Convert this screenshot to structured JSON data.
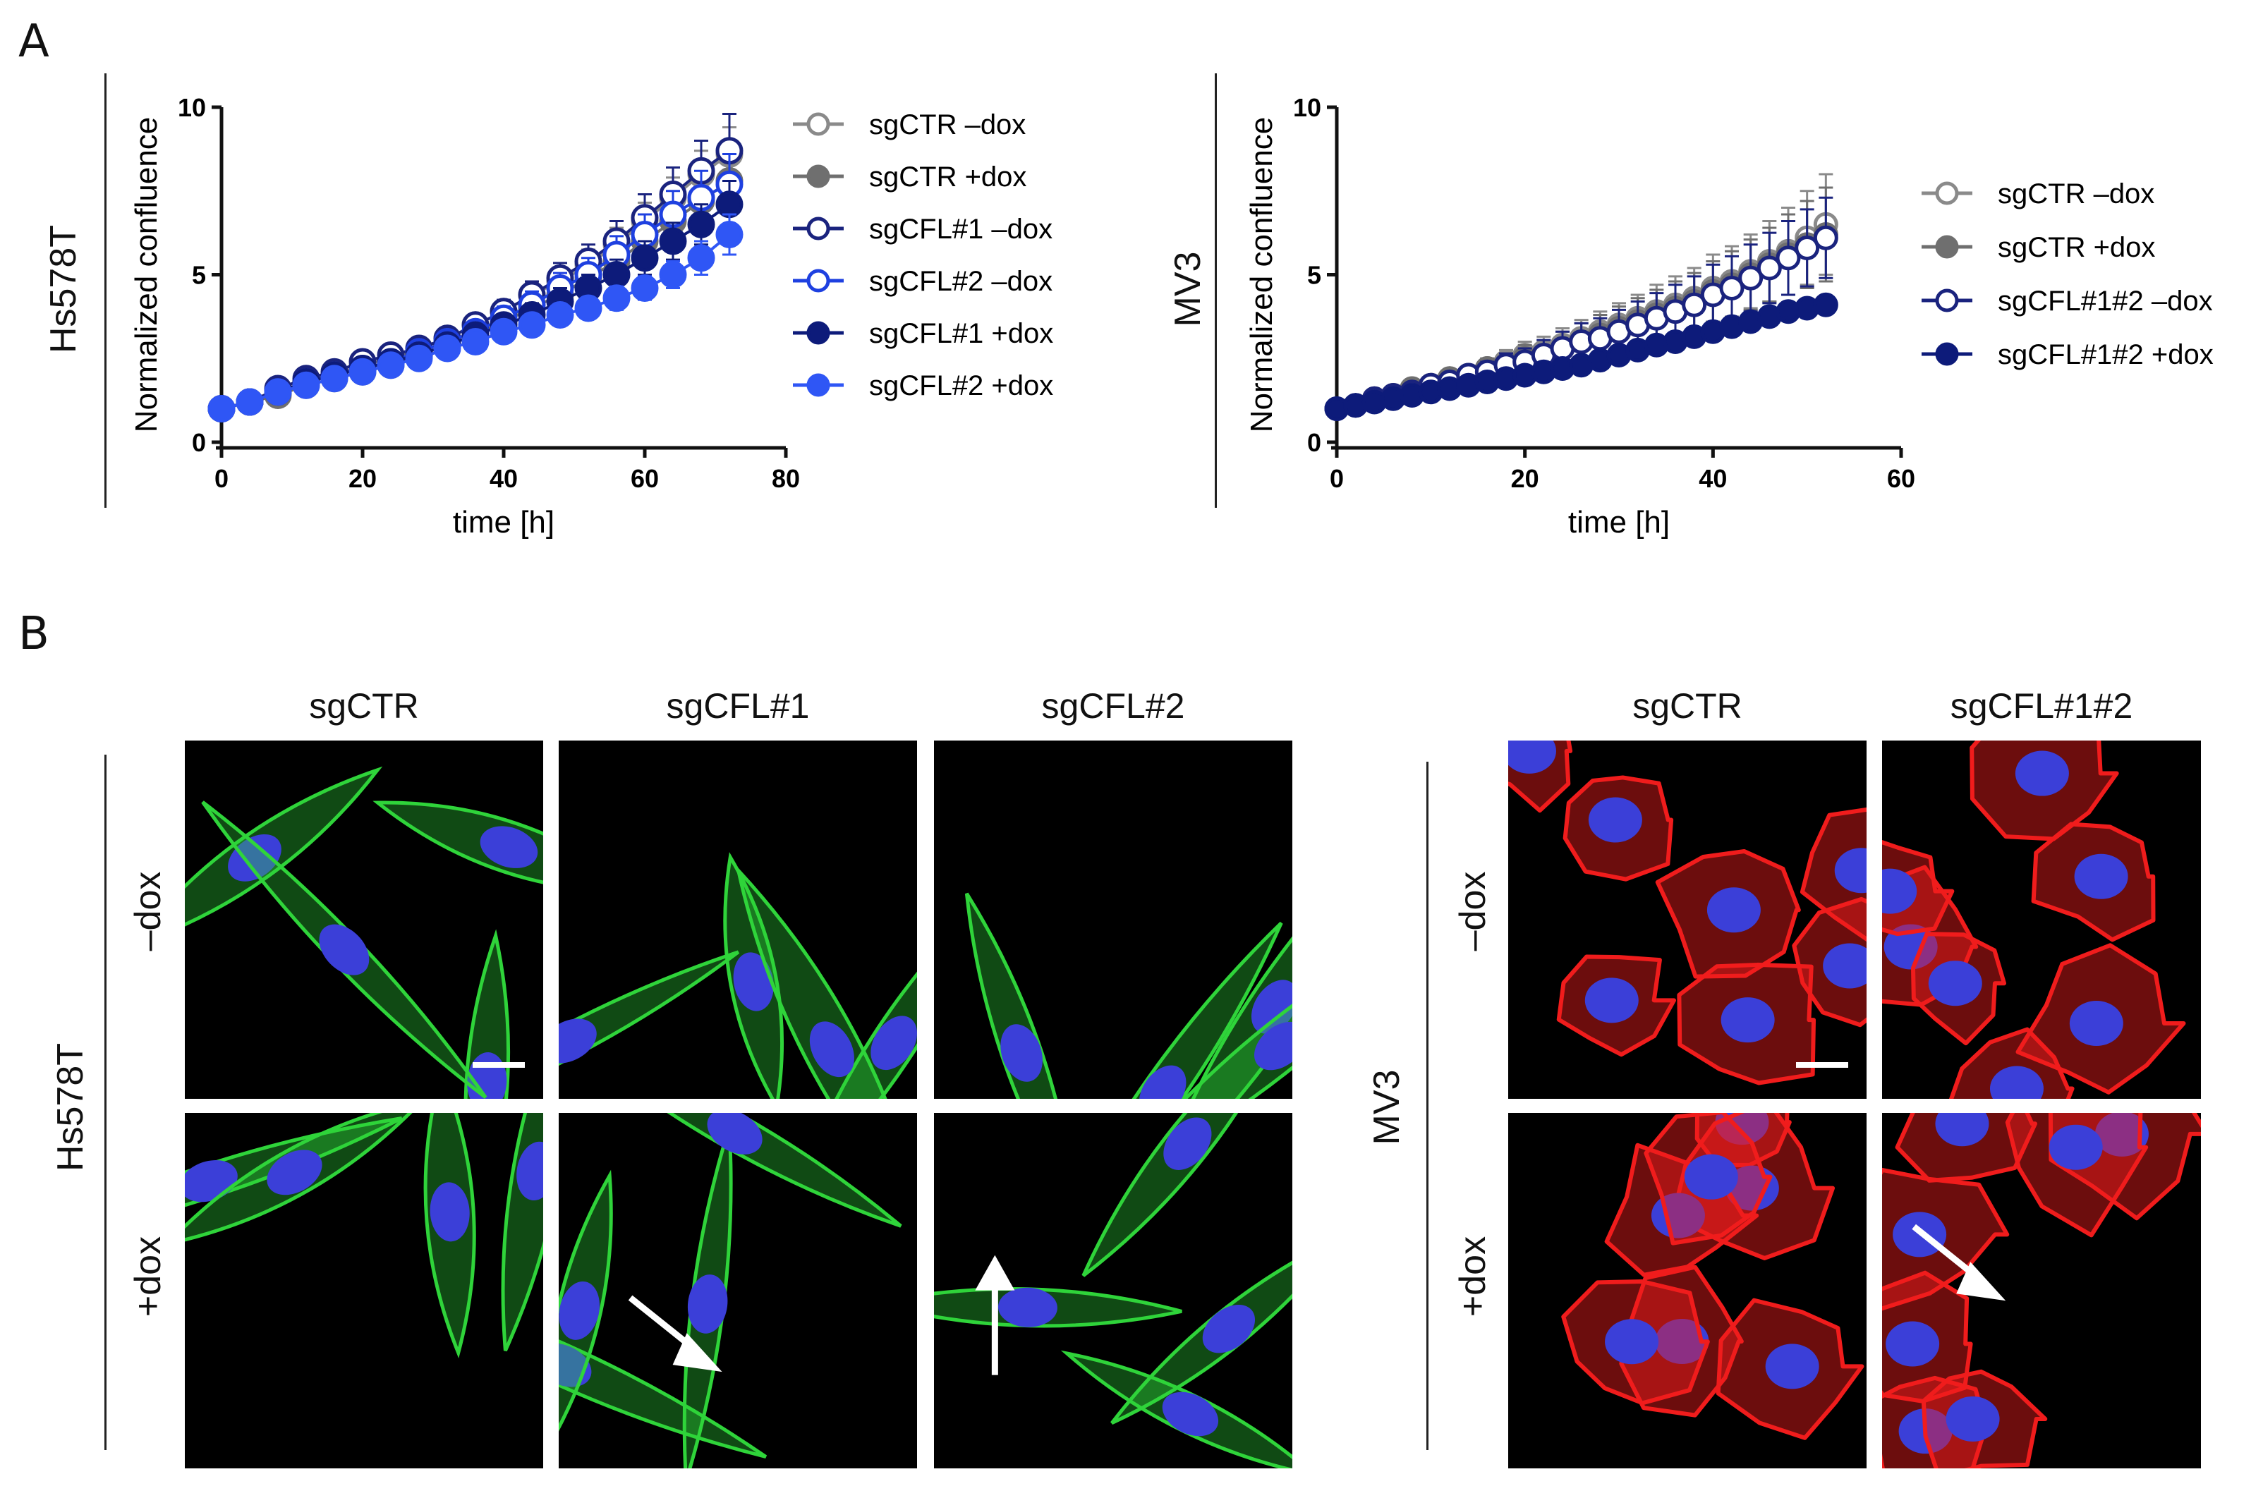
{
  "panelA": {
    "letter": "A",
    "charts": [
      {
        "row_label": "Hs578T",
        "chart_data": {
          "type": "line",
          "xlabel": "time [h]",
          "ylabel": "Normalized confluence",
          "xlim": [
            0,
            80
          ],
          "ylim": [
            0,
            10
          ],
          "xticks": [
            0,
            20,
            40,
            60,
            80
          ],
          "yticks": [
            0,
            5,
            10
          ],
          "legend_position": "right",
          "series": [
            {
              "name": "sgCTR –dox",
              "color": "#8a8a8a",
              "filled": false,
              "x": [
                0,
                4,
                8,
                12,
                16,
                20,
                24,
                28,
                32,
                36,
                40,
                44,
                48,
                52,
                56,
                60,
                64,
                68,
                72
              ],
              "y": [
                1.0,
                1.2,
                1.5,
                1.8,
                2.0,
                2.3,
                2.5,
                2.8,
                3.1,
                3.5,
                3.9,
                4.4,
                4.8,
                5.3,
                5.9,
                6.6,
                7.3,
                8.0,
                8.6
              ],
              "err": [
                0,
                0.05,
                0.1,
                0.1,
                0.15,
                0.15,
                0.2,
                0.2,
                0.25,
                0.3,
                0.3,
                0.35,
                0.4,
                0.45,
                0.5,
                0.55,
                0.6,
                0.7,
                0.8
              ]
            },
            {
              "name": "sgCTR +dox",
              "color": "#6f6f6f",
              "filled": true,
              "x": [
                0,
                4,
                8,
                12,
                16,
                20,
                24,
                28,
                32,
                36,
                40,
                44,
                48,
                52,
                56,
                60,
                64,
                68,
                72
              ],
              "y": [
                1.0,
                1.2,
                1.4,
                1.7,
                1.9,
                2.1,
                2.3,
                2.6,
                2.9,
                3.2,
                3.6,
                4.0,
                4.4,
                4.9,
                5.4,
                6.0,
                6.6,
                7.2,
                7.8
              ],
              "err": [
                0,
                0.05,
                0.1,
                0.1,
                0.15,
                0.15,
                0.2,
                0.2,
                0.25,
                0.3,
                0.3,
                0.35,
                0.4,
                0.45,
                0.5,
                0.55,
                0.6,
                0.7,
                0.8
              ]
            },
            {
              "name": "sgCFL#1 –dox",
              "color": "#1a237e",
              "filled": false,
              "x": [
                0,
                4,
                8,
                12,
                16,
                20,
                24,
                28,
                32,
                36,
                40,
                44,
                48,
                52,
                56,
                60,
                64,
                68,
                72
              ],
              "y": [
                1.0,
                1.2,
                1.6,
                1.9,
                2.1,
                2.4,
                2.6,
                2.8,
                3.1,
                3.5,
                3.9,
                4.4,
                4.9,
                5.4,
                6.0,
                6.7,
                7.4,
                8.1,
                8.7
              ],
              "err": [
                0,
                0.05,
                0.1,
                0.1,
                0.15,
                0.15,
                0.2,
                0.2,
                0.25,
                0.3,
                0.35,
                0.4,
                0.45,
                0.5,
                0.6,
                0.7,
                0.8,
                0.9,
                1.1
              ]
            },
            {
              "name": "sgCFL#2 –dox",
              "color": "#1e40e0",
              "filled": false,
              "x": [
                0,
                4,
                8,
                12,
                16,
                20,
                24,
                28,
                32,
                36,
                40,
                44,
                48,
                52,
                56,
                60,
                64,
                68,
                72
              ],
              "y": [
                1.0,
                1.2,
                1.5,
                1.8,
                2.0,
                2.2,
                2.4,
                2.7,
                3.0,
                3.3,
                3.7,
                4.1,
                4.6,
                5.0,
                5.6,
                6.2,
                6.8,
                7.3,
                7.7
              ],
              "err": [
                0,
                0.05,
                0.1,
                0.1,
                0.15,
                0.15,
                0.2,
                0.2,
                0.25,
                0.3,
                0.35,
                0.4,
                0.45,
                0.5,
                0.55,
                0.6,
                0.7,
                0.8,
                0.9
              ]
            },
            {
              "name": "sgCFL#1 +dox",
              "color": "#0d1b7a",
              "filled": true,
              "x": [
                0,
                4,
                8,
                12,
                16,
                20,
                24,
                28,
                32,
                36,
                40,
                44,
                48,
                52,
                56,
                60,
                64,
                68,
                72
              ],
              "y": [
                1.0,
                1.2,
                1.5,
                1.8,
                2.0,
                2.2,
                2.4,
                2.6,
                2.9,
                3.2,
                3.5,
                3.8,
                4.2,
                4.6,
                5.0,
                5.5,
                6.0,
                6.5,
                7.1
              ],
              "err": [
                0,
                0.05,
                0.1,
                0.1,
                0.15,
                0.15,
                0.2,
                0.2,
                0.25,
                0.25,
                0.3,
                0.35,
                0.4,
                0.4,
                0.45,
                0.5,
                0.55,
                0.6,
                0.7
              ]
            },
            {
              "name": "sgCFL#2 +dox",
              "color": "#2f56f5",
              "filled": true,
              "x": [
                0,
                4,
                8,
                12,
                16,
                20,
                24,
                28,
                32,
                36,
                40,
                44,
                48,
                52,
                56,
                60,
                64,
                68,
                72
              ],
              "y": [
                1.0,
                1.2,
                1.5,
                1.7,
                1.9,
                2.1,
                2.3,
                2.5,
                2.8,
                3.0,
                3.3,
                3.5,
                3.8,
                4.0,
                4.3,
                4.6,
                5.0,
                5.5,
                6.2
              ],
              "err": [
                0,
                0.05,
                0.1,
                0.1,
                0.15,
                0.15,
                0.15,
                0.2,
                0.2,
                0.2,
                0.25,
                0.25,
                0.3,
                0.3,
                0.35,
                0.35,
                0.4,
                0.5,
                0.6
              ]
            }
          ]
        }
      },
      {
        "row_label": "MV3",
        "chart_data": {
          "type": "line",
          "xlabel": "time [h]",
          "ylabel": "Normalized confluence",
          "xlim": [
            0,
            60
          ],
          "ylim": [
            0,
            10
          ],
          "xticks": [
            0,
            20,
            40,
            60
          ],
          "yticks": [
            0,
            5,
            10
          ],
          "legend_position": "right",
          "series": [
            {
              "name": "sgCTR –dox",
              "color": "#8a8a8a",
              "filled": false,
              "x": [
                0,
                2,
                4,
                6,
                8,
                10,
                12,
                14,
                16,
                18,
                20,
                22,
                24,
                26,
                28,
                30,
                32,
                34,
                36,
                38,
                40,
                42,
                44,
                46,
                48,
                50,
                52
              ],
              "y": [
                1.0,
                1.1,
                1.3,
                1.4,
                1.6,
                1.7,
                1.9,
                2.0,
                2.2,
                2.4,
                2.6,
                2.7,
                2.9,
                3.1,
                3.3,
                3.5,
                3.7,
                3.9,
                4.1,
                4.3,
                4.6,
                4.8,
                5.1,
                5.4,
                5.7,
                6.1,
                6.5
              ],
              "err": [
                0,
                0.05,
                0.1,
                0.1,
                0.15,
                0.15,
                0.2,
                0.25,
                0.3,
                0.35,
                0.4,
                0.45,
                0.5,
                0.55,
                0.6,
                0.65,
                0.7,
                0.8,
                0.85,
                0.9,
                1.0,
                1.05,
                1.1,
                1.2,
                1.3,
                1.4,
                1.5
              ]
            },
            {
              "name": "sgCTR +dox",
              "color": "#6f6f6f",
              "filled": true,
              "x": [
                0,
                2,
                4,
                6,
                8,
                10,
                12,
                14,
                16,
                18,
                20,
                22,
                24,
                26,
                28,
                30,
                32,
                34,
                36,
                38,
                40,
                42,
                44,
                46,
                48,
                50,
                52
              ],
              "y": [
                1.0,
                1.1,
                1.3,
                1.4,
                1.6,
                1.7,
                1.9,
                2.0,
                2.2,
                2.3,
                2.5,
                2.6,
                2.8,
                3.0,
                3.2,
                3.4,
                3.6,
                3.8,
                4.0,
                4.2,
                4.5,
                4.7,
                5.0,
                5.3,
                5.6,
                5.9,
                6.2
              ],
              "err": [
                0,
                0.05,
                0.1,
                0.1,
                0.15,
                0.15,
                0.2,
                0.25,
                0.3,
                0.35,
                0.4,
                0.45,
                0.5,
                0.55,
                0.6,
                0.65,
                0.7,
                0.75,
                0.8,
                0.85,
                0.9,
                1.0,
                1.05,
                1.1,
                1.2,
                1.3,
                1.4
              ]
            },
            {
              "name": "sgCFL#1#2 –dox",
              "color": "#1a237e",
              "filled": false,
              "x": [
                0,
                2,
                4,
                6,
                8,
                10,
                12,
                14,
                16,
                18,
                20,
                22,
                24,
                26,
                28,
                30,
                32,
                34,
                36,
                38,
                40,
                42,
                44,
                46,
                48,
                50,
                52
              ],
              "y": [
                1.0,
                1.1,
                1.3,
                1.4,
                1.5,
                1.7,
                1.8,
                2.0,
                2.1,
                2.3,
                2.4,
                2.6,
                2.8,
                3.0,
                3.1,
                3.3,
                3.5,
                3.7,
                3.9,
                4.1,
                4.4,
                4.6,
                4.9,
                5.2,
                5.5,
                5.8,
                6.1
              ],
              "err": [
                0,
                0.05,
                0.1,
                0.1,
                0.15,
                0.15,
                0.2,
                0.25,
                0.3,
                0.35,
                0.4,
                0.45,
                0.5,
                0.55,
                0.6,
                0.65,
                0.7,
                0.75,
                0.8,
                0.85,
                0.9,
                0.95,
                1.0,
                1.05,
                1.1,
                1.15,
                1.2
              ]
            },
            {
              "name": "sgCFL#1#2 +dox",
              "color": "#0d1b7a",
              "filled": true,
              "x": [
                0,
                2,
                4,
                6,
                8,
                10,
                12,
                14,
                16,
                18,
                20,
                22,
                24,
                26,
                28,
                30,
                32,
                34,
                36,
                38,
                40,
                42,
                44,
                46,
                48,
                50,
                52
              ],
              "y": [
                1.0,
                1.1,
                1.2,
                1.3,
                1.4,
                1.5,
                1.6,
                1.7,
                1.8,
                1.9,
                2.0,
                2.1,
                2.2,
                2.3,
                2.45,
                2.6,
                2.75,
                2.9,
                3.0,
                3.15,
                3.3,
                3.45,
                3.6,
                3.75,
                3.9,
                4.0,
                4.1
              ],
              "err": [
                0,
                0.03,
                0.05,
                0.05,
                0.05,
                0.05,
                0.08,
                0.08,
                0.08,
                0.1,
                0.1,
                0.1,
                0.1,
                0.12,
                0.12,
                0.12,
                0.12,
                0.15,
                0.15,
                0.15,
                0.15,
                0.15,
                0.15,
                0.18,
                0.18,
                0.18,
                0.2
              ]
            }
          ]
        }
      }
    ]
  },
  "panelB": {
    "letter": "B",
    "hs": {
      "side_label": "Hs578T",
      "columns": [
        "sgCTR",
        "sgCFL#1",
        "sgCFL#2"
      ],
      "rows": [
        "–dox",
        "+dox"
      ],
      "stain_color": "#2fd43a"
    },
    "mv": {
      "side_label": "MV3",
      "columns": [
        "sgCTR",
        "sgCFL#1#2"
      ],
      "rows": [
        "–dox",
        "+dox"
      ],
      "stain_color": "#f01c1c"
    },
    "nucleus_color": "#3b3fd8"
  }
}
